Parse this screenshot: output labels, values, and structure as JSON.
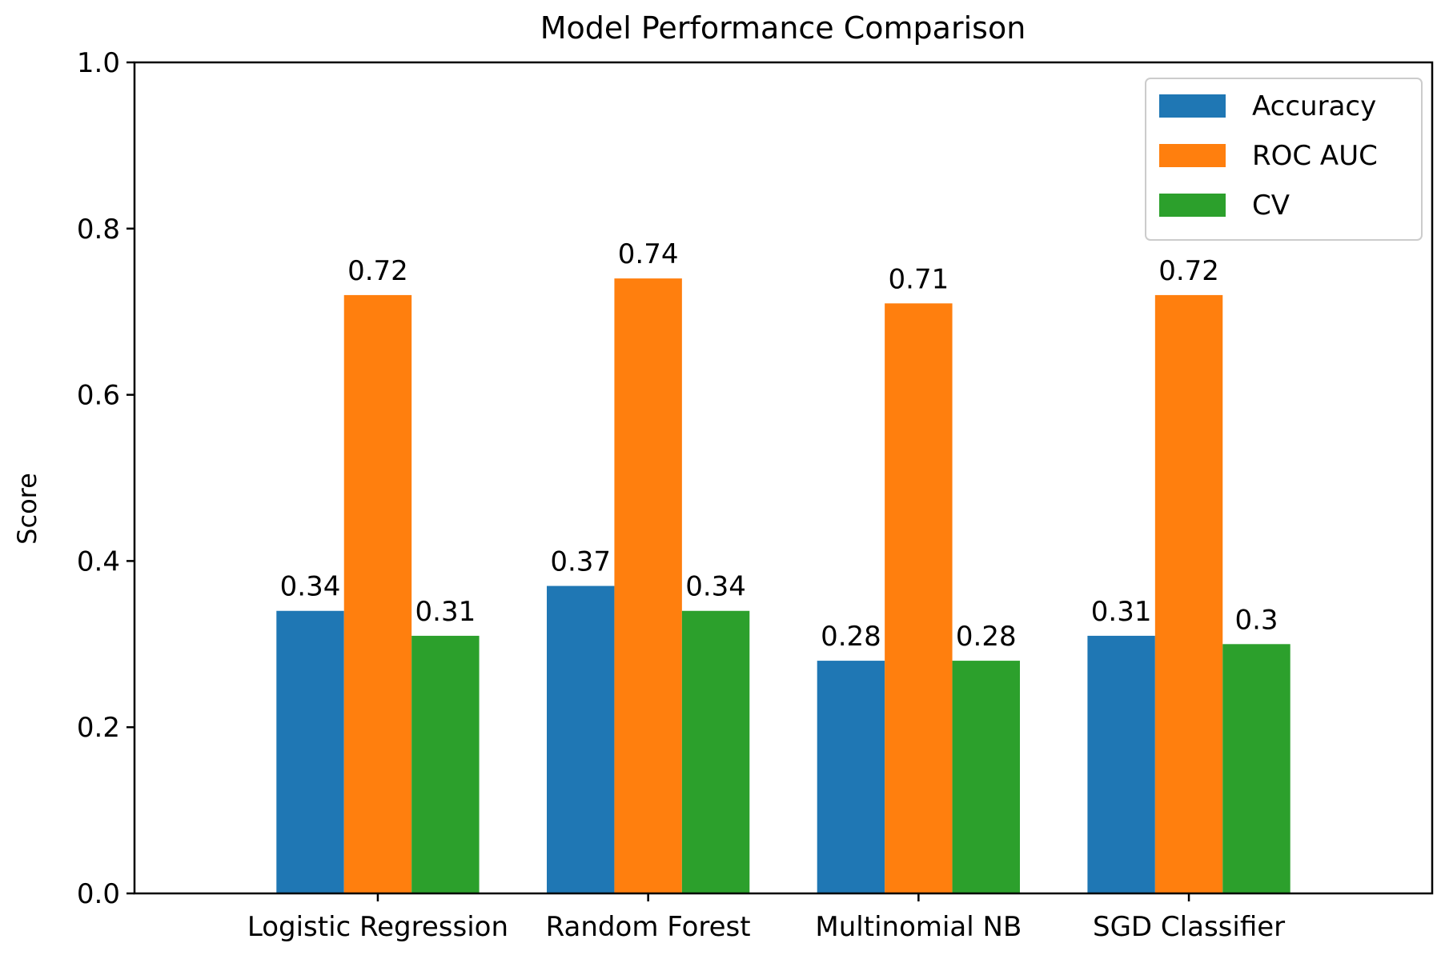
{
  "chart_data": {
    "type": "bar",
    "title": "Model Performance Comparison",
    "xlabel": "",
    "ylabel": "Score",
    "categories": [
      "Logistic Regression",
      "Random Forest",
      "Multinomial NB",
      "SGD Classifier"
    ],
    "series": [
      {
        "name": "Accuracy",
        "values": [
          0.34,
          0.37,
          0.28,
          0.31
        ],
        "labels": [
          "0.34",
          "0.37",
          "0.28",
          "0.31"
        ],
        "color": "#1f77b4"
      },
      {
        "name": "ROC AUC",
        "values": [
          0.72,
          0.74,
          0.71,
          0.72
        ],
        "labels": [
          "0.72",
          "0.74",
          "0.71",
          "0.72"
        ],
        "color": "#ff7f0e"
      },
      {
        "name": "CV",
        "values": [
          0.31,
          0.34,
          0.28,
          0.3
        ],
        "labels": [
          "0.31",
          "0.34",
          "0.28",
          "0.3"
        ],
        "color": "#2ca02c"
      }
    ],
    "ylim": [
      0,
      1.0
    ],
    "yticks": [
      "0.0",
      "0.2",
      "0.4",
      "0.6",
      "0.8",
      "1.0"
    ],
    "grid": false,
    "legend_position": "top-right"
  }
}
